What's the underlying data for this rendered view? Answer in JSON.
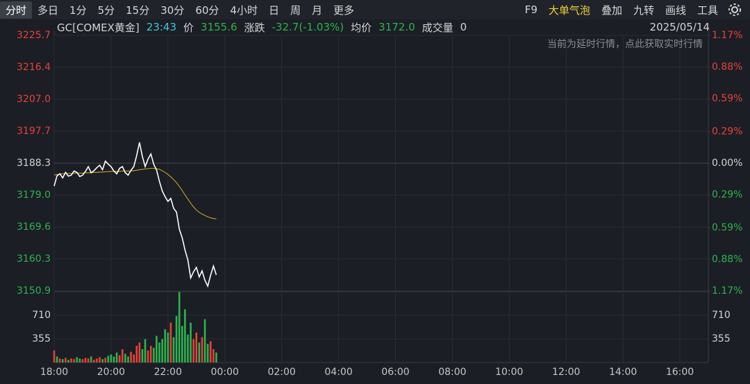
{
  "toolbar": {
    "tabs": [
      "分时",
      "多日",
      "1分",
      "5分",
      "15分",
      "30分",
      "60分",
      "4小时",
      "日",
      "周",
      "月",
      "更多"
    ],
    "selected": 0,
    "tools": [
      "F9",
      "大单气泡",
      "叠加",
      "九转",
      "画线",
      "工具"
    ],
    "highlight": 1
  },
  "info": {
    "symbol": "GC[COMEX黄金]",
    "time": "23:43",
    "price_label": "价",
    "price": "3155.6",
    "change_label": "涨跌",
    "change": "-32.7(-1.03%)",
    "avg_label": "均价",
    "avg": "3172.0",
    "volume_label": "成交量",
    "volume": "0",
    "date": "2025/05/14"
  },
  "chart_data": [
    {
      "type": "line",
      "annotation": "当前为延时行情，点此获取实时行情",
      "x": [
        18.0,
        18.1,
        18.2,
        18.3,
        18.4,
        18.5,
        18.6,
        18.7,
        18.8,
        18.9,
        19.0,
        19.1,
        19.2,
        19.3,
        19.4,
        19.5,
        19.6,
        19.7,
        19.8,
        19.9,
        20.0,
        20.1,
        20.2,
        20.3,
        20.4,
        20.5,
        20.6,
        20.7,
        20.8,
        20.9,
        21.0,
        21.1,
        21.2,
        21.3,
        21.4,
        21.5,
        21.6,
        21.7,
        21.8,
        21.9,
        22.0,
        22.1,
        22.2,
        22.3,
        22.4,
        22.5,
        22.6,
        22.7,
        22.8,
        22.9,
        23.0,
        23.1,
        23.2,
        23.3,
        23.4,
        23.5,
        23.6,
        23.7
      ],
      "series": [
        {
          "color": "#ffffff",
          "values": [
            3181.6,
            3184.6,
            3185.2,
            3184.0,
            3185.6,
            3184.5,
            3184.8,
            3186.0,
            3185.6,
            3184.4,
            3184.8,
            3185.9,
            3187.3,
            3185.5,
            3186.1,
            3187.0,
            3187.7,
            3186.4,
            3188.9,
            3188.0,
            3187.3,
            3186.0,
            3185.2,
            3186.8,
            3187.3,
            3185.5,
            3184.8,
            3186.2,
            3187.3,
            3190.5,
            3194.4,
            3190.3,
            3187.3,
            3189.5,
            3191.0,
            3188.0,
            3186.3,
            3183.0,
            3180.2,
            3178.5,
            3177.1,
            3178.0,
            3175.1,
            3174.0,
            3169.0,
            3166.5,
            3162.9,
            3160.0,
            3154.7,
            3156.5,
            3157.8,
            3155.0,
            3156.8,
            3154.0,
            3152.3,
            3155.5,
            3158.2,
            3155.6
          ]
        },
        {
          "color": "#c9a227",
          "values": [
            3184.8,
            3185.0,
            3185.1,
            3185.2,
            3185.3,
            3185.3,
            3185.3,
            3185.4,
            3185.4,
            3185.4,
            3185.4,
            3185.5,
            3185.5,
            3185.5,
            3185.6,
            3185.6,
            3185.7,
            3185.7,
            3185.8,
            3185.8,
            3185.9,
            3185.9,
            3185.9,
            3185.9,
            3186.0,
            3186.0,
            3186.0,
            3186.0,
            3186.1,
            3186.2,
            3186.4,
            3186.5,
            3186.6,
            3186.7,
            3186.8,
            3186.8,
            3186.7,
            3186.5,
            3186.1,
            3185.6,
            3185.0,
            3184.3,
            3183.5,
            3182.6,
            3181.5,
            3180.3,
            3179.0,
            3177.8,
            3176.6,
            3175.5,
            3174.6,
            3173.9,
            3173.4,
            3173.0,
            3172.6,
            3172.3,
            3172.1,
            3172.0
          ]
        }
      ],
      "xlim": [
        18,
        41
      ],
      "xticks": [
        {
          "value": 18,
          "label": "18:00"
        },
        {
          "value": 20,
          "label": "20:00"
        },
        {
          "value": 22,
          "label": "22:00"
        },
        {
          "value": 24,
          "label": "00:00"
        },
        {
          "value": 26,
          "label": "02:00"
        },
        {
          "value": 28,
          "label": "04:00"
        },
        {
          "value": 30,
          "label": "06:00"
        },
        {
          "value": 32,
          "label": "08:00"
        },
        {
          "value": 34,
          "label": "10:00"
        },
        {
          "value": 36,
          "label": "12:00"
        },
        {
          "value": 38,
          "label": "14:00"
        },
        {
          "value": 40,
          "label": "16:00"
        }
      ],
      "ylim": [
        3150.9,
        3225.7
      ],
      "yticks": [
        3225.7,
        3216.4,
        {
          "value": 3207.0,
          "label": "3207.0"
        },
        3197.7,
        3188.3,
        {
          "value": 3179.0,
          "label": "3179.0"
        },
        3169.6,
        3160.3,
        3150.9
      ],
      "y2lim": [
        -1.17,
        1.17
      ],
      "y2ticks": [
        {
          "value": 1.17,
          "label": "1.17%"
        },
        {
          "value": 0.88,
          "label": "0.88%"
        },
        {
          "value": 0.59,
          "label": "0.59%"
        },
        {
          "value": 0.29,
          "label": "0.29%"
        },
        {
          "value": 0,
          "label": "0.00%"
        },
        {
          "value": -0.29,
          "label": "0.29%"
        },
        {
          "value": -0.59,
          "label": "0.59%"
        },
        {
          "value": -0.88,
          "label": "0.88%"
        },
        {
          "value": -1.17,
          "label": "1.17%"
        }
      ],
      "base": 3188.3,
      "up_color": "#e8413b",
      "down_color": "#2fb34f",
      "flat_color": "#d4d4d4",
      "grid": true
    },
    {
      "type": "bar",
      "x": [
        18.0,
        18.1,
        18.2,
        18.3,
        18.4,
        18.5,
        18.6,
        18.7,
        18.8,
        18.9,
        19.0,
        19.1,
        19.2,
        19.3,
        19.4,
        19.5,
        19.6,
        19.7,
        19.8,
        19.9,
        20.0,
        20.1,
        20.2,
        20.3,
        20.4,
        20.5,
        20.6,
        20.7,
        20.8,
        20.9,
        21.0,
        21.1,
        21.2,
        21.3,
        21.4,
        21.5,
        21.6,
        21.7,
        21.8,
        21.9,
        22.0,
        22.1,
        22.2,
        22.3,
        22.4,
        22.5,
        22.6,
        22.7,
        22.8,
        22.9,
        23.0,
        23.1,
        23.2,
        23.3,
        23.4,
        23.5,
        23.6,
        23.7
      ],
      "values": [
        180,
        90,
        60,
        50,
        70,
        40,
        60,
        50,
        80,
        60,
        50,
        70,
        60,
        90,
        40,
        60,
        80,
        50,
        70,
        100,
        120,
        90,
        150,
        110,
        200,
        130,
        90,
        160,
        120,
        250,
        300,
        200,
        350,
        180,
        250,
        220,
        400,
        300,
        350,
        500,
        450,
        600,
        380,
        700,
        1060,
        550,
        800,
        420,
        600,
        350,
        450,
        300,
        380,
        650,
        280,
        320,
        200,
        150
      ],
      "colors": [
        "#e8413b",
        "#2fb34f",
        "#e8413b",
        "#2fb34f",
        "#e8413b",
        "#2fb34f",
        "#e8413b",
        "#e8413b",
        "#2fb34f",
        "#2fb34f",
        "#e8413b",
        "#e8413b",
        "#e8413b",
        "#2fb34f",
        "#e8413b",
        "#e8413b",
        "#e8413b",
        "#2fb34f",
        "#e8413b",
        "#2fb34f",
        "#2fb34f",
        "#2fb34f",
        "#2fb34f",
        "#e8413b",
        "#e8413b",
        "#2fb34f",
        "#2fb34f",
        "#e8413b",
        "#e8413b",
        "#e8413b",
        "#e8413b",
        "#2fb34f",
        "#2fb34f",
        "#e8413b",
        "#e8413b",
        "#2fb34f",
        "#2fb34f",
        "#2fb34f",
        "#2fb34f",
        "#2fb34f",
        "#2fb34f",
        "#e8413b",
        "#2fb34f",
        "#2fb34f",
        "#2fb34f",
        "#2fb34f",
        "#2fb34f",
        "#2fb34f",
        "#2fb34f",
        "#e8413b",
        "#e8413b",
        "#2fb34f",
        "#e8413b",
        "#2fb34f",
        "#2fb34f",
        "#e8413b",
        "#e8413b",
        "#2fb34f"
      ],
      "xlim": [
        18,
        41
      ],
      "ylim": [
        0,
        1065
      ],
      "yticks": [
        710,
        355
      ]
    }
  ]
}
